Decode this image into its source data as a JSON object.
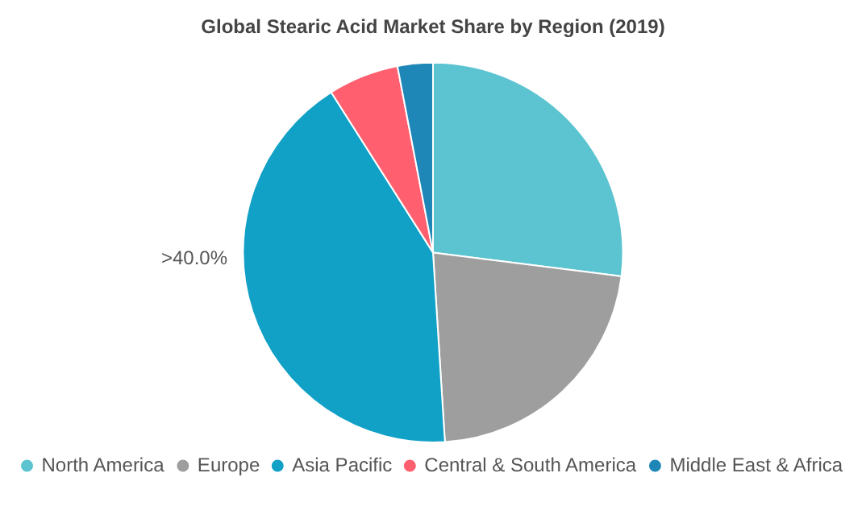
{
  "chart_data": {
    "type": "pie",
    "title": "Global Stearic Acid Market Share by Region (2019)",
    "categories": [
      "North America",
      "Europe",
      "Asia Pacific",
      "Central & South America",
      "Middle East & Africa"
    ],
    "values": [
      27,
      22,
      42,
      6,
      3
    ],
    "colors": [
      "#5bc4d0",
      "#9e9e9e",
      "#11a0c6",
      "#ff5f6e",
      "#1f86b8"
    ],
    "legend": "bottom",
    "annotations": [
      ">40.0%"
    ]
  }
}
